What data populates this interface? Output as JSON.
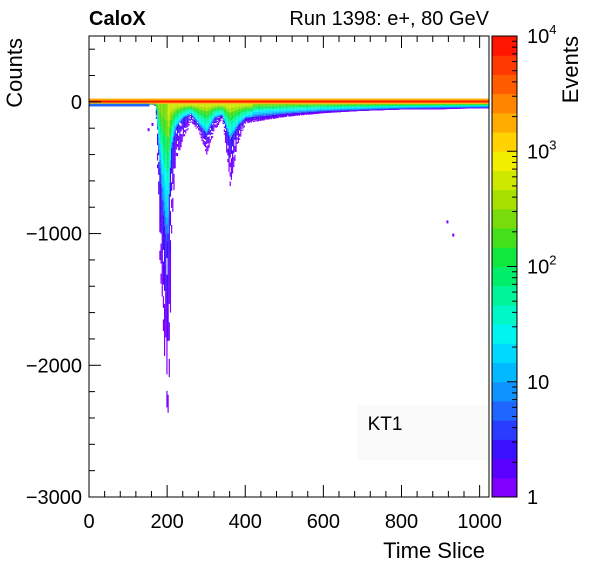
{
  "header": {
    "experiment": "CaloX",
    "run_info": "Run 1398: e+, 80 GeV"
  },
  "chart_data": {
    "type": "heatmap",
    "title": "",
    "xlabel": "Time Slice",
    "ylabel": "Counts",
    "zlabel": "Events",
    "xlim": [
      0,
      1024
    ],
    "ylim": [
      -3000,
      500
    ],
    "zlim": [
      1,
      10000
    ],
    "z_scale": "log",
    "x_ticks": [
      0,
      200,
      400,
      600,
      800,
      1000
    ],
    "x_tick_labels": [
      "0",
      "200",
      "400",
      "600",
      "800",
      "1000"
    ],
    "y_ticks": [
      0,
      -1000,
      -2000,
      -3000
    ],
    "y_tick_labels": [
      "0",
      "−1000",
      "−2000",
      "−3000"
    ],
    "z_tick_labels": [
      {
        "value": 1,
        "base": "1",
        "exp": ""
      },
      {
        "value": 10,
        "base": "10",
        "exp": ""
      },
      {
        "value": 100,
        "base": "10",
        "exp": "2"
      },
      {
        "value": 1000,
        "base": "10",
        "exp": "3"
      },
      {
        "value": 10000,
        "base": "10",
        "exp": "4"
      }
    ],
    "annotation": "KT1",
    "palette": [
      "#7f00ff",
      "#5a00ff",
      "#3a10ff",
      "#2a3cff",
      "#1f66ff",
      "#0f93ff",
      "#00b9ff",
      "#00d9ff",
      "#00f5f0",
      "#00f8c8",
      "#00f59a",
      "#00ee6a",
      "#10e83e",
      "#45e01c",
      "#78dc0c",
      "#a6e000",
      "#cfe800",
      "#f2ee00",
      "#ffd200",
      "#ffac00",
      "#ff8400",
      "#ff5c00",
      "#ff3a00",
      "#ff1500"
    ],
    "baseline": {
      "x_range": [
        0,
        1024
      ],
      "y_value": 0,
      "band_bottom": -40,
      "note_points": [
        [
          0,
          10
        ],
        [
          200,
          10
        ],
        [
          400,
          15
        ],
        [
          600,
          10
        ],
        [
          800,
          10
        ],
        [
          1000,
          20
        ]
      ]
    },
    "pulse_envelope": {
      "x": [
        150,
        165,
        170,
        180,
        190,
        200,
        205,
        210,
        220,
        240,
        260,
        280,
        300,
        320,
        340,
        360,
        380,
        400,
        500,
        600,
        700,
        800,
        900,
        1000,
        1024
      ],
      "y_min": [
        0,
        -20,
        -40,
        -1200,
        -1800,
        -2450,
        -2000,
        -1000,
        -450,
        -300,
        -150,
        -230,
        -400,
        -230,
        -120,
        -640,
        -320,
        -160,
        -110,
        -80,
        -60,
        -50,
        -50,
        -40,
        -40
      ],
      "y_core_low": [
        0,
        0,
        -20,
        -500,
        -900,
        -1100,
        -600,
        -350,
        -200,
        -120,
        -90,
        -170,
        -240,
        -120,
        -100,
        -280,
        -180,
        -120,
        -90,
        -70,
        -60,
        -50,
        -45,
        -40,
        -40
      ]
    },
    "outliers": [
      {
        "x": 150,
        "y": -200
      },
      {
        "x": 160,
        "y": -160
      },
      {
        "x": 915,
        "y": -900
      },
      {
        "x": 930,
        "y": -1000
      }
    ]
  }
}
